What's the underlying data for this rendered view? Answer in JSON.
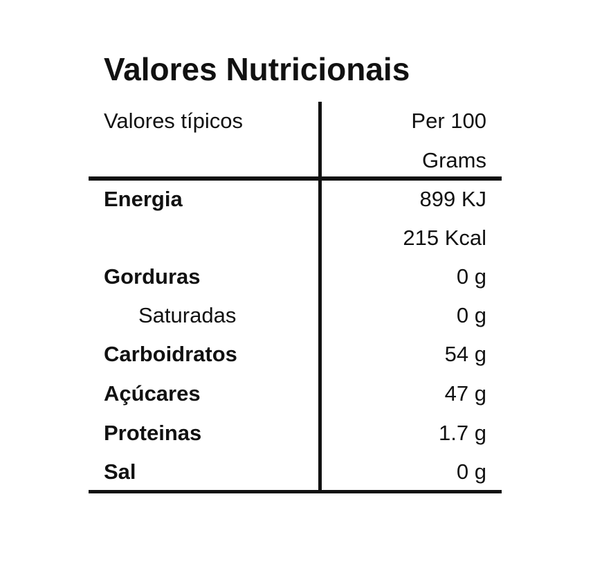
{
  "title": "Valores Nutricionais",
  "header": {
    "left": "Valores típicos",
    "right": [
      "Per 100",
      "Grams"
    ]
  },
  "rows": [
    {
      "label": "Energia",
      "values": [
        "899 KJ",
        "215 Kcal"
      ]
    },
    {
      "label": "Gorduras",
      "values": [
        "0 g"
      ]
    },
    {
      "label": "Saturadas",
      "values": [
        "0 g"
      ]
    },
    {
      "label": "Carboidratos",
      "values": [
        "54 g"
      ]
    },
    {
      "label": "Açúcares",
      "values": [
        "47 g"
      ]
    },
    {
      "label": "Proteinas",
      "values": [
        "1.7 g"
      ]
    },
    {
      "label": "Sal",
      "values": [
        "0 g"
      ]
    }
  ]
}
